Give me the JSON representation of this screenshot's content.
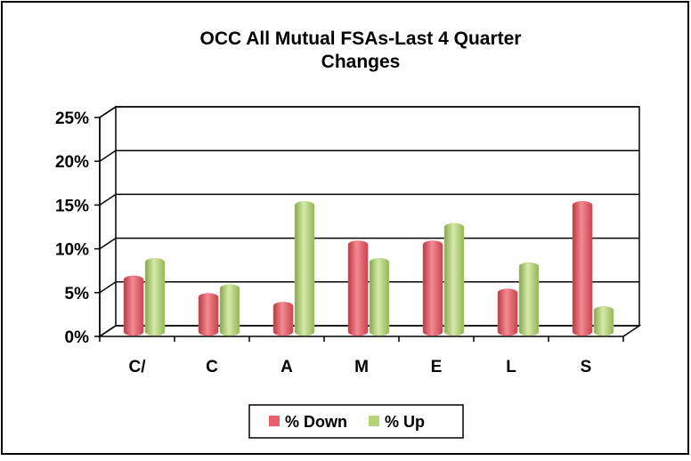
{
  "chart_data": {
    "type": "bar",
    "title": "OCC All Mutual FSAs-Last 4 Quarter Changes",
    "categories": [
      "C/",
      "C",
      "A",
      "M",
      "E",
      "L",
      "S"
    ],
    "series": [
      {
        "name": "% Down",
        "color": "#e8606a",
        "values": [
          6,
          4,
          3,
          10,
          10,
          4.5,
          14.5
        ]
      },
      {
        "name": "% Up",
        "color": "#b5d37a",
        "values": [
          8,
          5,
          14.5,
          8,
          12,
          7.5,
          2.5
        ]
      }
    ],
    "ylim": [
      0,
      25
    ],
    "yticks": [
      {
        "value": 0,
        "label": "0%"
      },
      {
        "value": 5,
        "label": "5%"
      },
      {
        "value": 10,
        "label": "10%"
      },
      {
        "value": 15,
        "label": "15%"
      },
      {
        "value": 20,
        "label": "20%"
      },
      {
        "value": 25,
        "label": "25%"
      }
    ],
    "grid": true,
    "legend": "bottom"
  }
}
